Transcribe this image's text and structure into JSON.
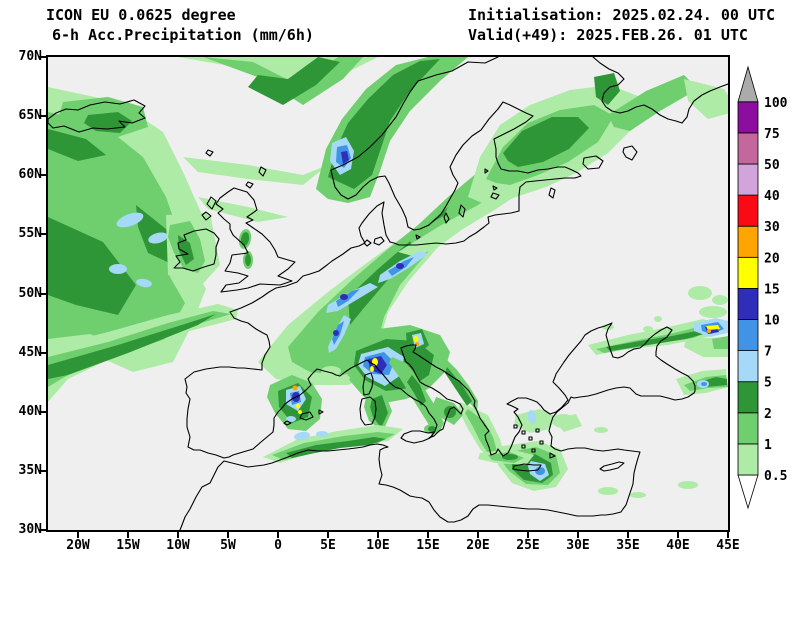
{
  "header": {
    "model_line": "ICON EU 0.0625 degree",
    "product_line": "6-h Acc.Precipitation (mm/6h)",
    "init_line": "Initialisation: 2025.02.24. 00 UTC",
    "valid_line": "Valid(+49): 2025.FEB.26. 01 UTC"
  },
  "map": {
    "background": "#EFEFEF",
    "coast_color": "#000000",
    "lat_ticks": [
      "70N",
      "65N",
      "60N",
      "55N",
      "50N",
      "45N",
      "40N",
      "35N",
      "30N"
    ],
    "lon_ticks": [
      "20W",
      "15W",
      "10W",
      "5W",
      "0",
      "5E",
      "10E",
      "15E",
      "20E",
      "25E",
      "30E",
      "35E",
      "40E",
      "45E"
    ]
  },
  "legend": {
    "unit": "mm/6h",
    "below_min_color": "#FFFFFF",
    "bands": [
      {
        "label": "0.5",
        "color": "#AEEBA6"
      },
      {
        "label": "1",
        "color": "#6FCF6F"
      },
      {
        "label": "2",
        "color": "#2F9638"
      },
      {
        "label": "5",
        "color": "#A6D9F7"
      },
      {
        "label": "7",
        "color": "#4193E6"
      },
      {
        "label": "10",
        "color": "#2E2EB8"
      },
      {
        "label": "15",
        "color": "#FFFF00"
      },
      {
        "label": "20",
        "color": "#FFA500"
      },
      {
        "label": "30",
        "color": "#FA0A14"
      },
      {
        "label": "40",
        "color": "#D2A4DC"
      },
      {
        "label": "50",
        "color": "#C4679D"
      },
      {
        "label": "75",
        "color": "#8C0DA0"
      },
      {
        "label": "100",
        "color": "#ABABAB"
      }
    ]
  },
  "palette": {
    "0.5": "#AEEBA6",
    "1": "#6FCF6F",
    "2": "#2F9638",
    "5": "#A6D9F7",
    "7": "#4193E6",
    "10": "#2E2EB8",
    "15": "#FFFF00",
    "20": "#FFA500",
    "30": "#FA0A14",
    "40": "#D2A4DC",
    "50": "#C4679D",
    "75": "#8C0DA0",
    "100": "#ABABAB"
  },
  "precip_regions": [
    {
      "l": "0.5",
      "p": "0,30 70,45 115,75 135,115 155,160 143,205 158,232 142,272 125,305 85,315 40,295 0,305"
    },
    {
      "l": "1",
      "p": "0,55 55,68 95,100 118,140 132,180 122,220 137,246 117,282 82,294 42,277 0,282"
    },
    {
      "l": "2",
      "p": "0,160 55,185 88,228 70,258 28,248 0,238"
    },
    {
      "l": "2",
      "p": "88,148 118,172 126,208 100,196 90,170"
    },
    {
      "l": "2",
      "p": "0,72 38,82 58,98 30,104 0,92"
    },
    {
      "l": "5",
      "e": [
        82,
        163,
        14,
        6,
        -20
      ]
    },
    {
      "l": "5",
      "e": [
        110,
        181,
        10,
        5,
        -15
      ]
    },
    {
      "l": "5",
      "e": [
        70,
        212,
        9,
        5,
        0
      ]
    },
    {
      "l": "5",
      "e": [
        96,
        226,
        8,
        4,
        10
      ]
    },
    {
      "l": "0.5",
      "p": "0,345 0,290 60,275 120,258 170,247 190,253 188,262 130,277 70,298 20,322"
    },
    {
      "l": "1",
      "p": "0,330 0,300 60,285 120,266 165,254 183,257 140,270 80,292 25,315"
    },
    {
      "l": "2",
      "p": "0,322 0,308 70,288 140,266 168,257 150,268 80,296 20,318"
    },
    {
      "l": "0.5",
      "p": "130,0 200,12 250,40 300,15 330,0"
    },
    {
      "l": "1",
      "p": "155,0 215,22 255,48 295,22 315,0 290,0 250,28 205,5"
    },
    {
      "l": "2",
      "p": "200,30 235,48 268,28 292,5 270,0 240,22 210,18"
    },
    {
      "l": "1",
      "p": "15,45 60,40 95,50 100,70 70,80 35,80 10,62"
    },
    {
      "l": "2",
      "p": "40,58 70,55 84,64 72,76 48,74 36,66"
    },
    {
      "l": "0.5",
      "p": "135,100 200,108 255,118 280,108 255,128 200,122 150,115"
    },
    {
      "l": "0.5",
      "p": "150,140 200,150 240,160 210,165 160,152"
    },
    {
      "l": "1",
      "p": "268,132 278,92 294,62 318,32 348,8 380,0 420,0 392,24 362,54 342,84 332,114 322,140 300,146 280,142"
    },
    {
      "l": "2",
      "p": "280,120 288,92 300,66 320,42 345,18 372,4 392,2 362,34 342,64 332,94 324,118 306,132"
    },
    {
      "l": "5",
      "p": "284,86 298,80 306,94 303,112 292,118 282,104"
    },
    {
      "l": "7",
      "p": "289,90 299,88 303,101 296,111 288,105"
    },
    {
      "l": "10",
      "p": "293,95 299,94 301,103 295,107"
    },
    {
      "l": "0.5",
      "p": "210,305 240,268 280,235 320,205 358,178 392,150 430,118 462,98 448,133 420,160 390,190 360,225 340,255 330,290 322,318 300,328 260,328 228,322"
    },
    {
      "l": "1",
      "p": "240,290 270,255 305,222 340,192 370,168 400,140 430,115 448,105 436,135 410,162 380,195 352,228 336,260 328,292 318,312 295,318 262,315 244,305"
    },
    {
      "l": "2",
      "p": "300,240 330,212 360,186 385,163 400,150 390,170 365,196 338,225 315,252 302,268"
    },
    {
      "l": "1",
      "p": "360,180 390,162 420,145 450,128 470,118 458,138 432,155 405,172 380,186 365,190"
    },
    {
      "l": "0.5",
      "p": "350,195 390,170 430,148 465,125 488,112 478,132 448,152 415,172 390,190 368,200"
    },
    {
      "l": "5",
      "p": "332,218 352,204 372,194 380,197 362,210 342,222 330,226"
    },
    {
      "l": "5",
      "p": "280,248 300,236 322,226 330,230 310,242 290,254 278,256"
    },
    {
      "l": "5",
      "p": "280,290 288,272 296,258 303,262 296,278 288,292 281,296"
    },
    {
      "l": "7",
      "p": "340,214 356,204 366,200 358,210 344,219"
    },
    {
      "l": "7",
      "p": "288,244 304,234 312,232 300,244 290,250"
    },
    {
      "l": "7",
      "p": "284,282 290,268 296,264 292,278 286,288"
    },
    {
      "l": "10",
      "e": [
        352,
        209,
        4,
        3,
        0
      ]
    },
    {
      "l": "10",
      "e": [
        296,
        240,
        4,
        3,
        0
      ]
    },
    {
      "l": "10",
      "e": [
        288,
        276,
        3,
        3,
        0
      ]
    },
    {
      "l": "0.5",
      "p": "420,140 432,100 452,68 482,48 522,33 562,28 592,40 586,70 560,96 528,116 498,130 468,140 444,150"
    },
    {
      "l": "1",
      "p": "438,122 455,90 480,66 512,53 546,48 566,59 550,85 520,105 490,118 462,128 448,126"
    },
    {
      "l": "2",
      "p": "455,96 474,74 504,60 530,60 541,71 521,92 495,105 470,110 460,104"
    },
    {
      "l": "1",
      "p": "560,58 598,34 636,18 650,32 612,54 582,74 566,70"
    },
    {
      "l": "0.5",
      "p": "636,22 676,32 690,54 660,62 640,44"
    },
    {
      "l": "0.5",
      "p": "690,18 720,26 714,40 694,34"
    },
    {
      "l": "2",
      "p": "546,20 566,16 572,34 560,48 548,40"
    },
    {
      "l": "0.5",
      "p": "118,158 162,156 172,208 152,230 120,218"
    },
    {
      "l": "1",
      "p": "122,168 142,164 152,182 157,204 150,216 136,212 126,196 120,180"
    },
    {
      "l": "2",
      "p": "130,178 142,186 146,202 138,208 131,194"
    },
    {
      "l": "1",
      "e": [
        197,
        182,
        6,
        10,
        10
      ]
    },
    {
      "l": "2",
      "e": [
        197,
        182,
        4,
        7,
        10
      ]
    },
    {
      "l": "1",
      "e": [
        200,
        203,
        5,
        9,
        0
      ]
    },
    {
      "l": "2",
      "e": [
        200,
        203,
        3,
        6,
        0
      ]
    },
    {
      "l": "1",
      "p": "298,288 330,272 362,268 392,278 402,295 396,316 380,332 358,342 336,346 316,340 302,324 295,306"
    },
    {
      "l": "2",
      "p": "308,294 338,282 368,284 386,298 381,318 362,331 338,334 317,323 306,308"
    },
    {
      "l": "5",
      "p": "313,297 340,290 356,300 353,318 337,329 319,320 310,308"
    },
    {
      "l": "7",
      "p": "317,300 336,295 346,305 341,318 325,317 315,309"
    },
    {
      "l": "10",
      "p": "320,302 333,299 339,308 333,317 322,313"
    },
    {
      "l": "15",
      "e": [
        327,
        305,
        3,
        4,
        0
      ]
    },
    {
      "l": "15",
      "e": [
        324,
        312,
        2,
        3,
        0
      ]
    },
    {
      "l": "2",
      "p": "358,276 374,272 381,288 371,297 359,289"
    },
    {
      "l": "5",
      "p": "364,278 373,276 376,287 367,291"
    },
    {
      "l": "15",
      "e": [
        368,
        282,
        2.5,
        3,
        0
      ]
    },
    {
      "l": "20",
      "e": [
        369,
        287,
        2,
        2,
        0
      ]
    },
    {
      "l": "1",
      "p": "318,340 336,334 344,354 335,374 321,364 316,350"
    },
    {
      "l": "2",
      "p": "324,342 334,338 340,356 333,371 325,360 322,350"
    },
    {
      "l": "1",
      "p": "222,328 244,318 264,326 274,342 272,362 258,374 240,372 227,356 219,340"
    },
    {
      "l": "2",
      "p": "230,334 250,326 264,340 260,360 244,366 231,350"
    },
    {
      "l": "5",
      "p": "238,333 252,329 258,342 250,354 238,347"
    },
    {
      "l": "7",
      "p": "242,336 251,334 253,345 244,348"
    },
    {
      "l": "10",
      "e": [
        248,
        340,
        4,
        5,
        0
      ]
    },
    {
      "l": "20",
      "e": [
        247,
        331,
        2.5,
        2.5,
        0
      ]
    },
    {
      "l": "15",
      "e": [
        250,
        349,
        2,
        2.5,
        0
      ]
    },
    {
      "l": "15",
      "e": [
        252,
        355,
        2,
        2,
        0
      ]
    },
    {
      "l": "5",
      "e": [
        243,
        362,
        5,
        3,
        0
      ]
    },
    {
      "l": "0.5",
      "p": "215,400 250,382 290,374 330,368 355,372 340,384 300,388 262,396 232,406"
    },
    {
      "l": "1",
      "p": "224,398 256,386 296,379 330,375 347,377 330,386 294,389 258,398 236,403"
    },
    {
      "l": "2",
      "p": "238,396 268,388 300,384 326,380 338,382 322,388 292,391 262,397 244,401"
    },
    {
      "l": "5",
      "e": [
        254,
        379,
        8,
        4,
        -10
      ]
    },
    {
      "l": "5",
      "e": [
        274,
        377,
        6,
        3,
        0
      ]
    },
    {
      "l": "1",
      "p": "344,300 358,306 370,320 379,336 389,352 396,366 391,376 381,368 371,352 361,336 350,318 341,306"
    },
    {
      "l": "2",
      "p": "364,318 372,328 378,344 373,349 366,336 359,325"
    },
    {
      "l": "1",
      "p": "394,298 409,313 421,329 430,344 429,355 418,341 405,324 392,308"
    },
    {
      "l": "2",
      "p": "399,310 414,328 424,344 419,349 407,331 397,316"
    },
    {
      "l": "0.5",
      "p": "412,345 440,358 452,382 456,398 446,406 432,392 420,372 410,352"
    },
    {
      "l": "1",
      "p": "420,352 436,364 445,380 449,394 441,398 432,384 424,368 417,356"
    },
    {
      "l": "1",
      "p": "388,340 406,346 415,358 406,368 392,360 385,348"
    },
    {
      "l": "2",
      "e": [
        402,
        355,
        6,
        6,
        0
      ]
    },
    {
      "l": "1",
      "e": [
        384,
        372,
        8,
        5,
        0
      ]
    },
    {
      "l": "2",
      "e": [
        384,
        372,
        4,
        3,
        0
      ]
    },
    {
      "l": "0.5",
      "p": "448,390 490,384 512,392 520,412 508,430 486,434 464,426 450,408"
    },
    {
      "l": "1",
      "p": "456,396 488,390 508,398 512,416 500,428 478,427 461,414 452,402"
    },
    {
      "l": "2",
      "p": "464,402 487,397 503,406 505,418 494,426 476,423 464,412"
    },
    {
      "l": "5",
      "p": "483,404 497,407 501,418 492,424 482,417 480,409"
    },
    {
      "l": "7",
      "e": [
        492,
        414,
        5,
        4,
        0
      ]
    },
    {
      "l": "0.5",
      "p": "468,358 492,352 508,360 502,372 482,376 466,368"
    },
    {
      "l": "0.5",
      "p": "505,362 528,357 534,369 516,375"
    },
    {
      "l": "5",
      "e": [
        484,
        360,
        4,
        7,
        -10
      ]
    },
    {
      "l": "0.5",
      "e": [
        515,
        364,
        11,
        7,
        0
      ]
    },
    {
      "l": "0.5",
      "e": [
        553,
        373,
        7,
        3,
        0
      ]
    },
    {
      "l": "0.5",
      "p": "540,288 580,278 620,270 655,262 672,268 660,280 620,288 580,292 548,298"
    },
    {
      "l": "1",
      "p": "548,292 585,284 622,277 650,270 662,274 645,281 612,286 578,292 556,296"
    },
    {
      "l": "2",
      "p": "558,290 592,284 624,279 648,274 656,277 638,282 606,287 576,292 562,294"
    },
    {
      "l": "0.5",
      "e": [
        665,
        255,
        14,
        6,
        0
      ]
    },
    {
      "l": "0.5",
      "p": "638,282 680,280 680,300 655,300 636,290"
    },
    {
      "l": "1",
      "p": "664,282 680,279 680,292 666,292"
    },
    {
      "l": "5",
      "p": "646,266 668,261 680,264 680,276 662,280 646,274"
    },
    {
      "l": "7",
      "p": "653,268 670,265 676,272 663,277 654,274"
    },
    {
      "l": "10",
      "p": "657,270 668,268 671,275 660,277"
    },
    {
      "l": "15",
      "p": "658,269 670,268 672,272 660,273"
    },
    {
      "l": "20",
      "e": [
        661,
        274,
        2,
        2,
        0
      ]
    },
    {
      "l": "0.5",
      "p": "628,322 654,314 678,312 680,330 658,336 636,338"
    },
    {
      "l": "1",
      "p": "636,328 658,320 678,318 680,330 660,331 642,334"
    },
    {
      "l": "2",
      "p": "648,326 668,320 679,322 679,328 658,330"
    },
    {
      "l": "5",
      "e": [
        655,
        327,
        6,
        4,
        0
      ]
    },
    {
      "l": "7",
      "e": [
        656,
        327,
        3,
        2,
        0
      ]
    },
    {
      "l": "0.5",
      "e": [
        652,
        236,
        12,
        7,
        0
      ]
    },
    {
      "l": "0.5",
      "e": [
        672,
        243,
        8,
        5,
        0
      ]
    },
    {
      "l": "0.5",
      "e": [
        560,
        270,
        6,
        3,
        0
      ]
    },
    {
      "l": "0.5",
      "e": [
        600,
        272,
        5,
        3,
        0
      ]
    },
    {
      "l": "0.5",
      "e": [
        610,
        262,
        4,
        3,
        0
      ]
    },
    {
      "l": "0.5",
      "p": "432,396 462,392 486,398 478,408 448,406 430,402"
    },
    {
      "l": "1",
      "p": "440,398 462,395 476,401 466,406 444,403"
    },
    {
      "l": "2",
      "e": [
        462,
        400,
        8,
        3,
        0
      ]
    },
    {
      "l": "0.5",
      "e": [
        560,
        434,
        10,
        4,
        0
      ]
    },
    {
      "l": "0.5",
      "e": [
        590,
        438,
        8,
        3,
        0
      ]
    },
    {
      "l": "0.5",
      "e": [
        640,
        428,
        10,
        4,
        0
      ]
    },
    {
      "l": "0.5",
      "e": [
        283,
        314,
        10,
        5,
        0
      ]
    },
    {
      "l": "0.5",
      "e": [
        296,
        321,
        6,
        3,
        0
      ]
    }
  ]
}
